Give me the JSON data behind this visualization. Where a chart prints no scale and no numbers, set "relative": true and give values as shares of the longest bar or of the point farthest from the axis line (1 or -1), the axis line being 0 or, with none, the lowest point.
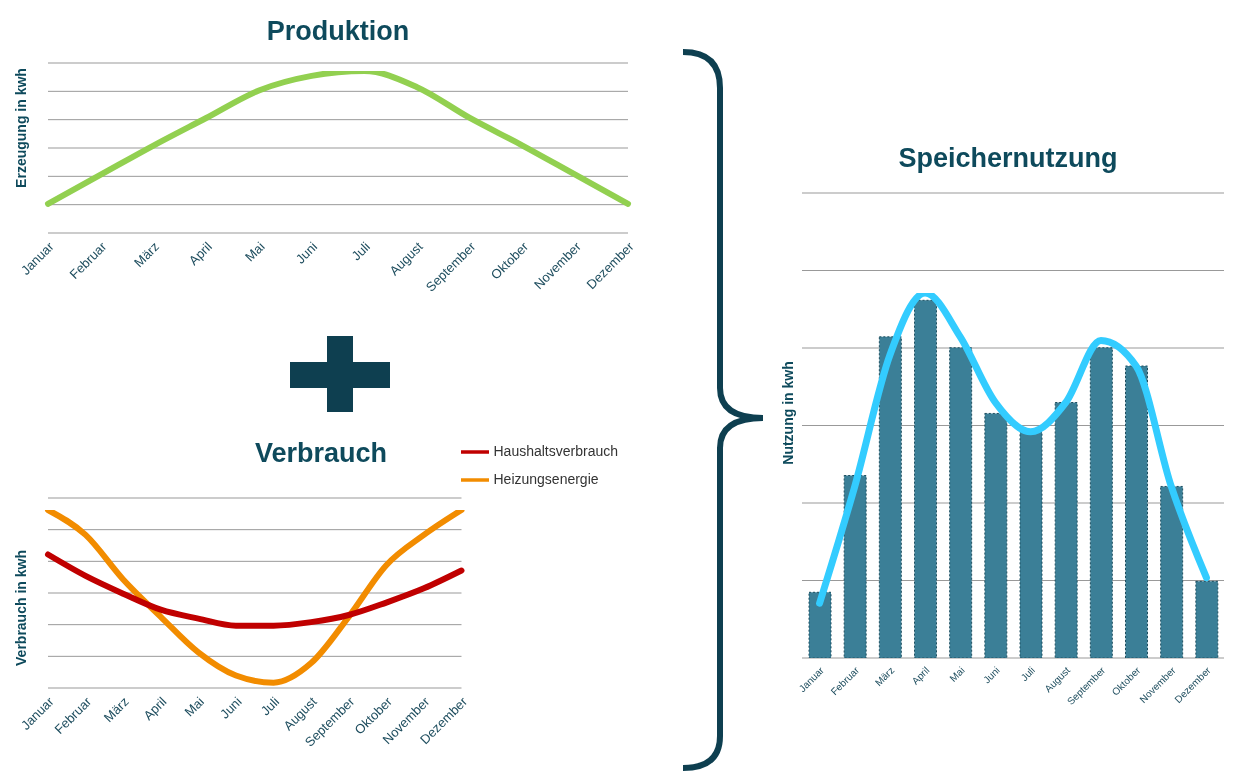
{
  "chart_data": [
    {
      "type": "line",
      "title": "Produktion",
      "ylabel": "Erzeugung in kwh",
      "relative": true,
      "grid": "y",
      "marker": "none",
      "categories": [
        "Januar",
        "Februar",
        "März",
        "April",
        "Mai",
        "Juni",
        "Juli",
        "August",
        "September",
        "Oktober",
        "November",
        "Dezember"
      ],
      "series": [
        {
          "color": "#92d050",
          "values": [
            0.18,
            0.36,
            0.54,
            0.71,
            0.88,
            0.97,
            1,
            0.9,
            0.71,
            0.54,
            0.36,
            0.18
          ]
        }
      ]
    },
    {
      "type": "line",
      "title": "Verbrauch",
      "ylabel": "Verbrauch in kwh",
      "relative": true,
      "grid": "y",
      "marker": "none",
      "legend": "top right",
      "categories": [
        "Januar",
        "Februar",
        "März",
        "April",
        "Mai",
        "Juni",
        "Juli",
        "August",
        "September",
        "Oktober",
        "November",
        "Dezember"
      ],
      "series": [
        {
          "name": "Heizungsenergie",
          "color": "#f28c00",
          "values": [
            1,
            0.86,
            0.61,
            0.4,
            0.2,
            0.07,
            0.03,
            0.14,
            0.4,
            0.69,
            0.86,
            1
          ]
        },
        {
          "name": "Haushaltsverbrauch",
          "color": "#c00000",
          "values": [
            0.75,
            0.63,
            0.53,
            0.44,
            0.39,
            0.35,
            0.35,
            0.37,
            0.41,
            0.48,
            0.56,
            0.66
          ]
        }
      ]
    },
    {
      "type": "bar",
      "title": "Speichernutzung",
      "ylabel": "Nutzung in kwh",
      "relative": true,
      "grid": "y",
      "marker": "none",
      "categories": [
        "Januar",
        "Februar",
        "März",
        "April",
        "Mai",
        "Juni",
        "Juli",
        "August",
        "September",
        "Oktober",
        "November",
        "Dezember"
      ],
      "series": [
        {
          "type": "bar",
          "color": "#3b7f97",
          "values": [
            0.18,
            0.5,
            0.88,
            0.98,
            0.85,
            0.67,
            0.62,
            0.7,
            0.85,
            0.8,
            0.47,
            0.21
          ]
        },
        {
          "type": "line",
          "color": "#33ccff",
          "values": [
            0.15,
            0.47,
            0.83,
            1,
            0.88,
            0.7,
            0.62,
            0.7,
            0.87,
            0.8,
            0.47,
            0.22
          ]
        }
      ]
    }
  ]
}
